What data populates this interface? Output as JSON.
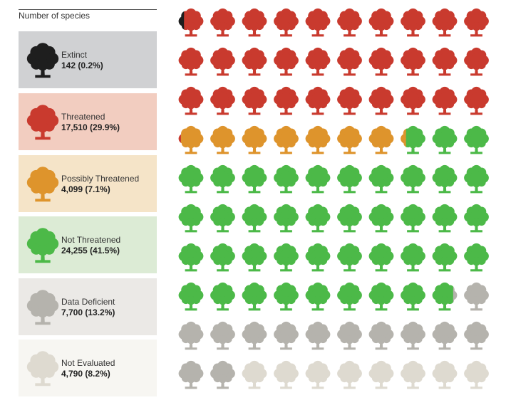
{
  "legend": {
    "title": "Number of species",
    "items": [
      {
        "label": "Extinct",
        "value": "142 (0.2%)",
        "color": "#1e1e1e",
        "bg": "#d0d1d3"
      },
      {
        "label": "Threatened",
        "value": "17,510 (29.9%)",
        "color": "#c93a2e",
        "bg": "#f2cdc0"
      },
      {
        "label": "Possibly Threatened",
        "value": "4,099 (7.1%)",
        "color": "#de942c",
        "bg": "#f5e4c8"
      },
      {
        "label": "Not Threatened",
        "value": "24,255 (41.5%)",
        "color": "#4cb948",
        "bg": "#dcebd5"
      },
      {
        "label": "Data Deficient",
        "value": "7,700 (13.2%)",
        "color": "#b5b3ad",
        "bg": "#ebe9e6"
      },
      {
        "label": "Not Evaluated",
        "value": "4,790 (8.2%)",
        "color": "#dedad0",
        "bg": "#f7f6f2"
      }
    ]
  },
  "chart_data": {
    "type": "waffle",
    "grid": {
      "rows": 10,
      "cols": 10
    },
    "unit": "each tree = 1% of species",
    "categories": [
      "Extinct",
      "Threatened",
      "Possibly Threatened",
      "Not Threatened",
      "Data Deficient",
      "Not Evaluated"
    ],
    "percent": [
      0.2,
      29.9,
      7.1,
      41.5,
      13.2,
      8.2
    ],
    "species": [
      142,
      17510,
      4099,
      24255,
      7700,
      4790
    ],
    "icon": "tree-icon"
  }
}
